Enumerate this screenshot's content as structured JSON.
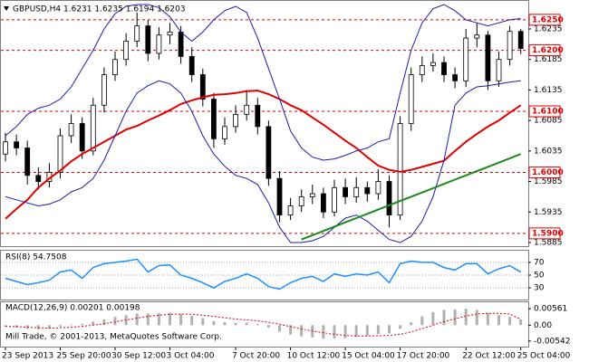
{
  "chart_data": [
    {
      "type": "candlestick",
      "title": "GBPUSD,H4 1.6231 1.6235 1.6194 1.6203",
      "categories": [
        "23 Sep 2013",
        null,
        null,
        null,
        null,
        "25 Sep 20:00",
        null,
        null,
        null,
        null,
        "30 Sep 12:00",
        null,
        null,
        null,
        null,
        "3 Oct 04:00",
        null,
        null,
        null,
        null,
        null,
        "7 Oct 20:00",
        null,
        null,
        null,
        null,
        "10 Oct 12:00",
        null,
        null,
        null,
        null,
        "15 Oct 04:00",
        null,
        null,
        null,
        null,
        "17 Oct 20:00",
        null,
        null,
        null,
        null,
        null,
        "22 Oct 12:00",
        null,
        null,
        null,
        null,
        "25 Oct 04:00"
      ],
      "open": [
        1.603,
        1.605,
        1.604,
        1.5995,
        1.5985,
        1.6,
        1.606,
        1.608,
        1.6035,
        1.611,
        1.616,
        1.6185,
        1.6215,
        1.624,
        1.6195,
        1.6225,
        1.623,
        1.619,
        1.616,
        1.612,
        1.6055,
        1.6075,
        1.6095,
        1.611,
        1.6075,
        1.599,
        1.593,
        1.5945,
        1.596,
        1.5965,
        1.5935,
        1.5975,
        1.596,
        1.5975,
        1.5965,
        1.5985,
        1.593,
        1.608,
        1.616,
        1.6175,
        1.618,
        1.616,
        1.615,
        1.622,
        1.6225,
        1.615,
        1.6185,
        1.6231
      ],
      "high": [
        1.6065,
        1.6062,
        1.6052,
        1.6008,
        1.6015,
        1.6072,
        1.6095,
        1.609,
        1.6122,
        1.6172,
        1.6198,
        1.6228,
        1.6262,
        1.625,
        1.6238,
        1.6245,
        1.624,
        1.6205,
        1.617,
        1.613,
        1.609,
        1.611,
        1.6135,
        1.6122,
        1.6085,
        1.6002,
        1.5958,
        1.5972,
        1.598,
        1.5975,
        1.5988,
        1.599,
        1.5992,
        1.5985,
        1.6005,
        1.5995,
        1.6092,
        1.6172,
        1.619,
        1.6195,
        1.619,
        1.6172,
        1.6235,
        1.6245,
        1.6232,
        1.6198,
        1.624,
        1.6235
      ],
      "low": [
        1.6018,
        1.6028,
        1.598,
        1.5972,
        1.5975,
        1.599,
        1.6048,
        1.6022,
        1.6028,
        1.6098,
        1.615,
        1.6175,
        1.6205,
        1.6182,
        1.6185,
        1.621,
        1.6178,
        1.6148,
        1.6108,
        1.604,
        1.6045,
        1.6065,
        1.6085,
        1.6062,
        1.5978,
        1.5918,
        1.5922,
        1.5935,
        1.5948,
        1.5925,
        1.5928,
        1.5948,
        1.595,
        1.5952,
        1.5955,
        1.591,
        1.5922,
        1.6068,
        1.6148,
        1.6165,
        1.6148,
        1.6138,
        1.614,
        1.6205,
        1.6135,
        1.614,
        1.6175,
        1.6194
      ],
      "close": [
        1.605,
        1.604,
        1.5995,
        1.5985,
        1.6,
        1.606,
        1.608,
        1.6035,
        1.611,
        1.616,
        1.6185,
        1.6215,
        1.624,
        1.6195,
        1.6225,
        1.623,
        1.619,
        1.616,
        1.612,
        1.6055,
        1.6075,
        1.6095,
        1.611,
        1.6075,
        1.599,
        1.593,
        1.5945,
        1.596,
        1.5965,
        1.5935,
        1.5975,
        1.596,
        1.5975,
        1.5965,
        1.5985,
        1.593,
        1.608,
        1.616,
        1.6175,
        1.618,
        1.616,
        1.615,
        1.622,
        1.6225,
        1.615,
        1.6185,
        1.6231,
        1.6203
      ],
      "up_color": "#ffffff",
      "down_color": "#000000",
      "overlays": [
        {
          "color": "#e00000",
          "width": 2,
          "values": [
            1.5924,
            1.594,
            1.5955,
            1.5975,
            1.599,
            1.6003,
            1.6018,
            1.603,
            1.604,
            1.605,
            1.606,
            1.607,
            1.6076,
            1.6085,
            1.6093,
            1.6102,
            1.6112,
            1.6118,
            1.6123,
            1.6127,
            1.6128,
            1.613,
            1.6133,
            1.6134,
            1.6128,
            1.612,
            1.611,
            1.6102,
            1.609,
            1.6078,
            1.6065,
            1.6052,
            1.604,
            1.6025,
            1.6011,
            1.6004,
            1.6001,
            1.6004,
            1.6009,
            1.6014,
            1.6019,
            1.6035,
            1.605,
            1.6063,
            1.6075,
            1.6085,
            1.6098,
            1.611
          ]
        },
        {
          "color": "#1c1ca8",
          "width": 1,
          "values": [
            1.606,
            1.6075,
            1.6095,
            1.6105,
            1.611,
            1.612,
            1.614,
            1.617,
            1.62,
            1.6235,
            1.626,
            1.6272,
            1.6275,
            1.6275,
            1.627,
            1.6255,
            1.623,
            1.6215,
            1.623,
            1.625,
            1.6265,
            1.6272,
            1.6262,
            1.622,
            1.617,
            1.612,
            1.6068,
            1.604,
            1.6025,
            1.602,
            1.6022,
            1.6028,
            1.6035,
            1.604,
            1.605,
            1.6055,
            1.613,
            1.62,
            1.6245,
            1.6268,
            1.6275,
            1.6265,
            1.625,
            1.6245,
            1.624,
            1.6245,
            1.625,
            1.6252
          ]
        },
        {
          "color": "#1c1ca8",
          "width": 1,
          "values": [
            1.596,
            1.5955,
            1.595,
            1.5945,
            1.5948,
            1.5955,
            1.5968,
            1.5975,
            1.599,
            1.602,
            1.606,
            1.61,
            1.613,
            1.6142,
            1.615,
            1.6145,
            1.613,
            1.61,
            1.606,
            1.603,
            1.601,
            1.5995,
            1.599,
            1.598,
            1.595,
            1.591,
            1.5885,
            1.5885,
            1.5888,
            1.5895,
            1.591,
            1.5925,
            1.593,
            1.592,
            1.5905,
            1.589,
            1.5885,
            1.5895,
            1.592,
            1.596,
            1.602,
            1.611,
            1.613,
            1.614,
            1.6142,
            1.6145,
            1.6148,
            1.615
          ]
        },
        {
          "color": "#1a8a1a",
          "width": 2,
          "values": [
            null,
            null,
            null,
            null,
            null,
            null,
            null,
            null,
            null,
            null,
            null,
            null,
            null,
            null,
            null,
            null,
            null,
            null,
            null,
            null,
            null,
            null,
            null,
            null,
            null,
            null,
            null,
            1.589,
            1.5897,
            1.5904,
            1.5911,
            1.5918,
            1.5925,
            1.5932,
            1.5939,
            1.5946,
            1.5953,
            1.596,
            1.5967,
            1.5974,
            1.5981,
            1.5988,
            1.5995,
            1.6002,
            1.6009,
            1.6016,
            1.6023,
            1.603
          ]
        }
      ],
      "levels": [
        {
          "value": 1.625,
          "label": "1.6250"
        },
        {
          "value": 1.62,
          "label": "1.6200"
        },
        {
          "value": 1.61,
          "label": "1.6100"
        },
        {
          "value": 1.6,
          "label": "1.6000"
        },
        {
          "value": 1.59,
          "label": "1.5900"
        }
      ],
      "level_color": "#e00000",
      "ylim": [
        1.5882,
        1.6278
      ],
      "yticks": [
        1.6235,
        1.6185,
        1.6135,
        1.6085,
        1.6035,
        1.5985,
        1.5935,
        1.5885
      ]
    },
    {
      "type": "line",
      "title": "RSI(8) 54.7508",
      "values": [
        45,
        40,
        35,
        38,
        42,
        55,
        58,
        45,
        62,
        68,
        70,
        72,
        75,
        55,
        65,
        66,
        50,
        45,
        38,
        30,
        40,
        45,
        52,
        45,
        32,
        28,
        38,
        45,
        48,
        40,
        52,
        48,
        52,
        50,
        55,
        38,
        68,
        72,
        70,
        70,
        62,
        58,
        68,
        68,
        52,
        60,
        65,
        54.7508
      ],
      "color": "#1e90ff",
      "ylim": [
        13,
        87
      ],
      "yticks": [
        70,
        50,
        30
      ],
      "grid": true
    },
    {
      "type": "bar",
      "title": "MACD(12,26,9) 0.00201 0.00198",
      "annotation": "Mill Trade, © 2001-2013, MetaQuotes Software Corp.",
      "values": [
        -0.0005,
        -0.0008,
        -0.0012,
        -0.0014,
        -0.0012,
        -0.0005,
        0.0002,
        0.0005,
        0.0012,
        0.002,
        0.0028,
        0.0034,
        0.004,
        0.004,
        0.0041,
        0.0042,
        0.0038,
        0.0032,
        0.0024,
        0.0014,
        0.001,
        0.0008,
        0.0008,
        0.0004,
        -0.0008,
        -0.0022,
        -0.0032,
        -0.0038,
        -0.0042,
        -0.0046,
        -0.0045,
        -0.0044,
        -0.004,
        -0.0036,
        -0.003,
        -0.0028,
        -0.0012,
        0.001,
        0.003,
        0.0045,
        0.0052,
        0.0054,
        0.0056,
        0.0052,
        0.0042,
        0.0034,
        0.0028,
        0.00201
      ],
      "color": "#b0b0b0",
      "signal": {
        "color": "#e00000",
        "values": [
          -0.0004,
          -0.0005,
          -0.0007,
          -0.0009,
          -0.001,
          -0.0009,
          -0.0007,
          -0.0004,
          0.0,
          0.0005,
          0.0011,
          0.0018,
          0.0024,
          0.003,
          0.0034,
          0.0037,
          0.0038,
          0.0037,
          0.0034,
          0.003,
          0.0025,
          0.0021,
          0.0018,
          0.0015,
          0.001,
          0.0003,
          -0.0005,
          -0.0013,
          -0.002,
          -0.0026,
          -0.0031,
          -0.0035,
          -0.0037,
          -0.0037,
          -0.0036,
          -0.0035,
          -0.0031,
          -0.0023,
          -0.0012,
          0.0,
          0.0012,
          0.0022,
          0.0031,
          0.0038,
          0.004,
          0.004,
          0.0038,
          0.00198
        ]
      },
      "ylim": [
        -0.007,
        0.0075
      ],
      "yticks": [
        0.00561,
        {
          "value": 0,
          "label": "0.00"
        },
        -0.00542
      ]
    }
  ]
}
